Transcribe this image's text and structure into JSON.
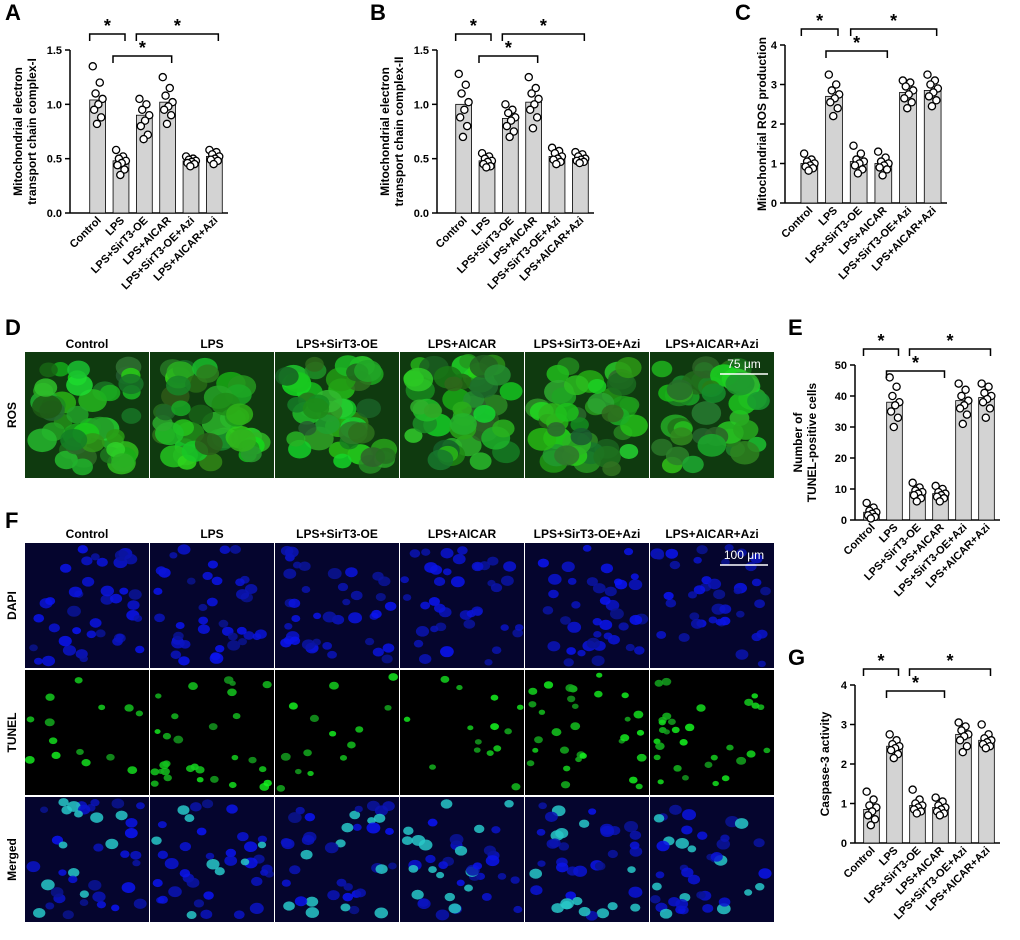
{
  "chart_data": [
    {
      "type": "bar",
      "panel": "A",
      "ylabel": [
        "Mitochondrial electron",
        "transport chain complex-I"
      ],
      "categories": [
        "Control",
        "LPS",
        "LPS+SirT3-OE",
        "LPS+AICAR",
        "LPS+SirT3-OE+Azi",
        "LPS+AICAR+Azi"
      ],
      "values": [
        1.04,
        0.48,
        0.9,
        1.02,
        0.48,
        0.52
      ],
      "points": [
        [
          1.35,
          1.2,
          1.1,
          1.05,
          1.0,
          0.95,
          0.88,
          0.82
        ],
        [
          0.58,
          0.52,
          0.5,
          0.48,
          0.46,
          0.44,
          0.4,
          0.35
        ],
        [
          1.05,
          1.0,
          0.95,
          0.9,
          0.85,
          0.8,
          0.72,
          0.68
        ],
        [
          1.25,
          1.15,
          1.08,
          1.02,
          0.98,
          0.95,
          0.9,
          0.82
        ],
        [
          0.52,
          0.5,
          0.49,
          0.48,
          0.47,
          0.46,
          0.45,
          0.43
        ],
        [
          0.58,
          0.56,
          0.54,
          0.52,
          0.5,
          0.49,
          0.48,
          0.45
        ]
      ],
      "ylim": [
        0,
        1.5
      ],
      "yticks": [
        {
          "value": 0,
          "label": "0.0"
        },
        0.5,
        {
          "value": 1,
          "label": "1.0"
        },
        1.5
      ],
      "color": "#d3d3d3",
      "comparisons": [
        {
          "from": 0,
          "to": 1,
          "label": "*"
        },
        {
          "from": 1,
          "to": 3,
          "label": "*"
        },
        {
          "from": 2,
          "to": 5,
          "label": "*"
        }
      ]
    },
    {
      "type": "bar",
      "panel": "B",
      "ylabel": [
        "Mitochondrial electron",
        "transport chain complex-II"
      ],
      "categories": [
        "Control",
        "LPS",
        "LPS+SirT3-OE",
        "LPS+AICAR",
        "LPS+SirT3-OE+Azi",
        "LPS+AICAR+Azi"
      ],
      "values": [
        1.0,
        0.48,
        0.87,
        1.02,
        0.52,
        0.5
      ],
      "points": [
        [
          1.28,
          1.18,
          1.1,
          1.02,
          0.95,
          0.88,
          0.8,
          0.7
        ],
        [
          0.55,
          0.52,
          0.5,
          0.48,
          0.47,
          0.45,
          0.43,
          0.42
        ],
        [
          1.0,
          0.95,
          0.92,
          0.88,
          0.85,
          0.8,
          0.75,
          0.7
        ],
        [
          1.25,
          1.15,
          1.1,
          1.05,
          1.0,
          0.95,
          0.88,
          0.78
        ],
        [
          0.6,
          0.57,
          0.55,
          0.52,
          0.5,
          0.49,
          0.47,
          0.45
        ],
        [
          0.56,
          0.54,
          0.52,
          0.5,
          0.49,
          0.48,
          0.47,
          0.46
        ]
      ],
      "ylim": [
        0,
        1.5
      ],
      "yticks": [
        {
          "value": 0,
          "label": "0.0"
        },
        0.5,
        {
          "value": 1,
          "label": "1.0"
        },
        1.5
      ],
      "color": "#d3d3d3",
      "comparisons": [
        {
          "from": 0,
          "to": 1,
          "label": "*"
        },
        {
          "from": 1,
          "to": 3,
          "label": "*"
        },
        {
          "from": 2,
          "to": 5,
          "label": "*"
        }
      ]
    },
    {
      "type": "bar",
      "panel": "C",
      "ylabel": [
        "Mitochondrial ROS production"
      ],
      "categories": [
        "Control",
        "LPS",
        "LPS+SirT3-OE",
        "LPS+AICAR",
        "LPS+SirT3-OE+Azi",
        "LPS+AICAR+Azi"
      ],
      "values": [
        1.0,
        2.7,
        1.05,
        1.0,
        2.8,
        2.85
      ],
      "points": [
        [
          1.25,
          1.1,
          1.05,
          1.0,
          0.95,
          0.92,
          0.88,
          0.82
        ],
        [
          3.25,
          3.0,
          2.85,
          2.75,
          2.65,
          2.55,
          2.4,
          2.2
        ],
        [
          1.45,
          1.25,
          1.1,
          1.05,
          1.0,
          0.95,
          0.85,
          0.75
        ],
        [
          1.3,
          1.15,
          1.05,
          1.0,
          0.95,
          0.9,
          0.85,
          0.7
        ],
        [
          3.1,
          3.05,
          2.95,
          2.85,
          2.75,
          2.65,
          2.55,
          2.4
        ],
        [
          3.25,
          3.1,
          3.0,
          2.9,
          2.8,
          2.7,
          2.6,
          2.45
        ]
      ],
      "ylim": [
        0,
        4
      ],
      "yticks": [
        0,
        1,
        2,
        3,
        4
      ],
      "color": "#d3d3d3",
      "comparisons": [
        {
          "from": 0,
          "to": 1,
          "label": "*"
        },
        {
          "from": 1,
          "to": 3,
          "label": "*"
        },
        {
          "from": 2,
          "to": 5,
          "label": "*"
        }
      ]
    },
    {
      "type": "bar",
      "panel": "E",
      "ylabel": [
        "Number of",
        "TUNEL-positive cells"
      ],
      "categories": [
        "Control",
        "LPS",
        "LPS+SirT3-OE",
        "LPS+AICAR",
        "LPS+SirT3-OE+Azi",
        "LPS+AICAR+Azi"
      ],
      "values": [
        2.5,
        38,
        9,
        8.5,
        38.5,
        39.5
      ],
      "points": [
        [
          5.5,
          4,
          3,
          2.5,
          2,
          1.5,
          1,
          0.5
        ],
        [
          46,
          43,
          40,
          38,
          37,
          35,
          33,
          30
        ],
        [
          12,
          10.5,
          9.5,
          9,
          8.5,
          8,
          7,
          6
        ],
        [
          11,
          10,
          9,
          8.5,
          8,
          7.5,
          7,
          6
        ],
        [
          44,
          42,
          40,
          38.5,
          37,
          36,
          34,
          31
        ],
        [
          44,
          43,
          41,
          40,
          39,
          38,
          36,
          33
        ]
      ],
      "ylim": [
        0,
        50
      ],
      "yticks": [
        0,
        10,
        20,
        30,
        40,
        50
      ],
      "color": "#d3d3d3",
      "comparisons": [
        {
          "from": 0,
          "to": 1,
          "label": "*"
        },
        {
          "from": 1,
          "to": 3,
          "label": "*"
        },
        {
          "from": 2,
          "to": 5,
          "label": "*"
        }
      ]
    },
    {
      "type": "bar",
      "panel": "G",
      "ylabel": [
        "Caspase-3 activity"
      ],
      "categories": [
        "Control",
        "LPS",
        "LPS+SirT3-OE",
        "LPS+AICAR",
        "LPS+SirT3-OE+Azi",
        "LPS+AICAR+Azi"
      ],
      "values": [
        0.85,
        2.45,
        0.95,
        0.9,
        2.75,
        2.6
      ],
      "points": [
        [
          1.3,
          1.1,
          0.95,
          0.9,
          0.8,
          0.7,
          0.6,
          0.45
        ],
        [
          2.75,
          2.6,
          2.5,
          2.45,
          2.4,
          2.35,
          2.25,
          2.15
        ],
        [
          1.35,
          1.1,
          1.0,
          0.95,
          0.9,
          0.85,
          0.8,
          0.75
        ],
        [
          1.15,
          1.05,
          0.95,
          0.9,
          0.85,
          0.8,
          0.75,
          0.7
        ],
        [
          3.05,
          2.95,
          2.85,
          2.75,
          2.7,
          2.6,
          2.45,
          2.3
        ],
        [
          3.0,
          2.75,
          2.65,
          2.6,
          2.55,
          2.5,
          2.45,
          2.4
        ]
      ],
      "ylim": [
        0,
        4
      ],
      "yticks": [
        0,
        1,
        2,
        3,
        4
      ],
      "color": "#d3d3d3",
      "comparisons": [
        {
          "from": 0,
          "to": 1,
          "label": "*"
        },
        {
          "from": 1,
          "to": 3,
          "label": "*"
        },
        {
          "from": 2,
          "to": 5,
          "label": "*"
        }
      ]
    }
  ],
  "image_panels": [
    {
      "panel": "D",
      "columns": [
        "Control",
        "LPS",
        "LPS+SirT3-OE",
        "LPS+AICAR",
        "LPS+SirT3-OE+Azi",
        "LPS+AICAR+Azi"
      ],
      "rows": [
        "ROS"
      ],
      "scale_bar": "75 μm"
    },
    {
      "panel": "F",
      "columns": [
        "Control",
        "LPS",
        "LPS+SirT3-OE",
        "LPS+AICAR",
        "LPS+SirT3-OE+Azi",
        "LPS+AICAR+Azi"
      ],
      "rows": [
        "DAPI",
        "TUNEL",
        "Merged"
      ],
      "scale_bar": "100 μm"
    }
  ]
}
